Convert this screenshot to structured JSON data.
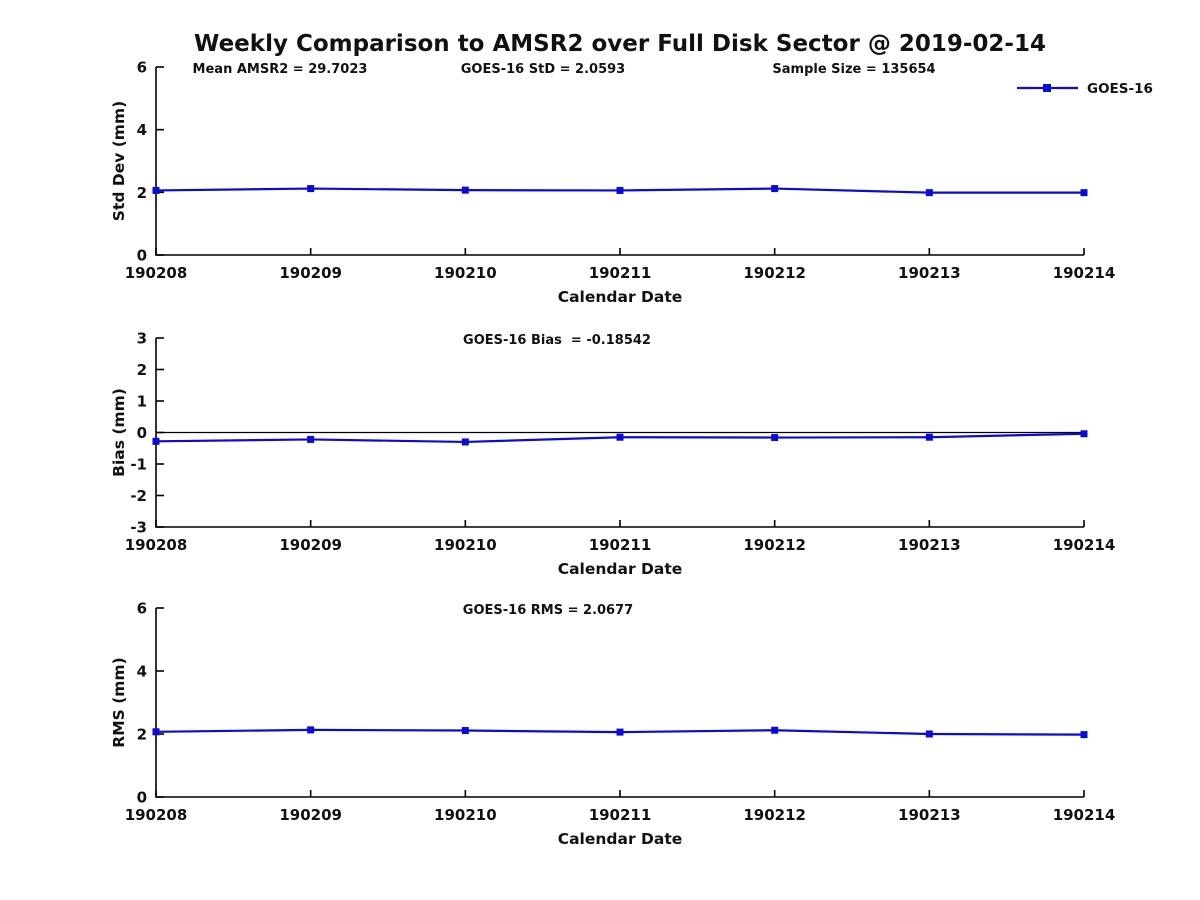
{
  "title": "Weekly Comparison to AMSR2 over Full Disk Sector @ 2019-02-14",
  "legend": {
    "label": "GOES-16",
    "position": "top-right"
  },
  "colors": {
    "series": "#0a0ad9",
    "axis": "#000000",
    "text": "#111111",
    "background": "#ffffff"
  },
  "chart_data": [
    {
      "type": "line",
      "name": "std-dev-subplot",
      "title_annotations": [
        {
          "text": "Mean AMSR2 = 29.7023",
          "cx": 280
        },
        {
          "text": "GOES-16 StD = 2.0593",
          "cx": 543
        },
        {
          "text": "Sample Size = 135654",
          "cx": 854
        }
      ],
      "xlabel": "Calendar Date",
      "ylabel": "Std Dev (mm)",
      "ylim": [
        0,
        6
      ],
      "yticks": [
        0,
        2,
        4,
        6
      ],
      "categories": [
        "190208",
        "190209",
        "190210",
        "190211",
        "190212",
        "190213",
        "190214"
      ],
      "series": [
        {
          "name": "GOES-16",
          "values": [
            2.06,
            2.12,
            2.07,
            2.06,
            2.12,
            1.99,
            1.99
          ]
        }
      ],
      "zero_line": false,
      "grid": false
    },
    {
      "type": "line",
      "name": "bias-subplot",
      "title_annotations": [
        {
          "text": "GOES-16 Bias  = -0.18542",
          "cx": 557
        }
      ],
      "xlabel": "Calendar Date",
      "ylabel": "Bias (mm)",
      "ylim": [
        -3,
        3
      ],
      "yticks": [
        -3,
        -2,
        -1,
        0,
        1,
        2,
        3
      ],
      "categories": [
        "190208",
        "190209",
        "190210",
        "190211",
        "190212",
        "190213",
        "190214"
      ],
      "series": [
        {
          "name": "GOES-16",
          "values": [
            -0.28,
            -0.22,
            -0.3,
            -0.15,
            -0.16,
            -0.15,
            -0.04
          ]
        }
      ],
      "zero_line": true,
      "grid": false
    },
    {
      "type": "line",
      "name": "rms-subplot",
      "title_annotations": [
        {
          "text": "GOES-16 RMS = 2.0677",
          "cx": 548
        }
      ],
      "xlabel": "Calendar Date",
      "ylabel": "RMS (mm)",
      "ylim": [
        0,
        6
      ],
      "yticks": [
        0,
        2,
        4,
        6
      ],
      "categories": [
        "190208",
        "190209",
        "190210",
        "190211",
        "190212",
        "190213",
        "190214"
      ],
      "series": [
        {
          "name": "GOES-16",
          "values": [
            2.07,
            2.13,
            2.11,
            2.06,
            2.12,
            2.0,
            1.98
          ]
        }
      ],
      "zero_line": false,
      "grid": false
    }
  ]
}
